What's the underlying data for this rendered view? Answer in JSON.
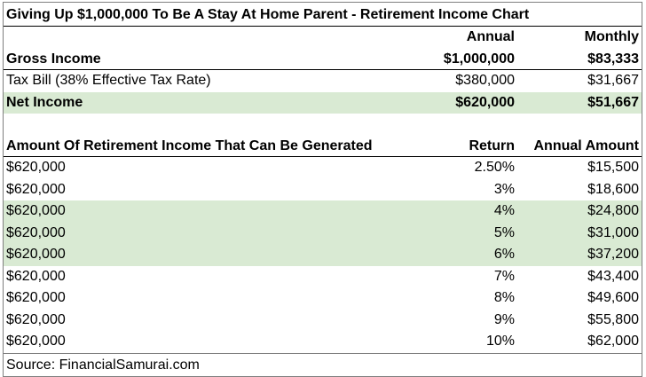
{
  "title": "Giving Up $1,000,000 To Be A Stay At Home Parent - Retirement Income Chart",
  "income_header": {
    "label": "",
    "annual": "Annual",
    "monthly": "Monthly"
  },
  "gross": {
    "label": "Gross Income",
    "annual": "$1,000,000",
    "monthly": "$83,333"
  },
  "tax": {
    "label": "Tax Bill (38% Effective Tax Rate)",
    "annual": "$380,000",
    "monthly": "$31,667"
  },
  "net": {
    "label": "Net Income",
    "annual": "$620,000",
    "monthly": "$51,667"
  },
  "retirement_header": {
    "label": "Amount Of Retirement Income That Can Be Generated",
    "return": "Return",
    "amount": "Annual Amount"
  },
  "retirement_rows": [
    {
      "principal": "$620,000",
      "return": "2.50%",
      "amount": "$15,500",
      "highlight": false
    },
    {
      "principal": "$620,000",
      "return": "3%",
      "amount": "$18,600",
      "highlight": false
    },
    {
      "principal": "$620,000",
      "return": "4%",
      "amount": "$24,800",
      "highlight": true
    },
    {
      "principal": "$620,000",
      "return": "5%",
      "amount": "$31,000",
      "highlight": true
    },
    {
      "principal": "$620,000",
      "return": "6%",
      "amount": "$37,200",
      "highlight": true
    },
    {
      "principal": "$620,000",
      "return": "7%",
      "amount": "$43,400",
      "highlight": false
    },
    {
      "principal": "$620,000",
      "return": "8%",
      "amount": "$49,600",
      "highlight": false
    },
    {
      "principal": "$620,000",
      "return": "9%",
      "amount": "$55,800",
      "highlight": false
    },
    {
      "principal": "$620,000",
      "return": "10%",
      "amount": "$62,000",
      "highlight": false
    }
  ],
  "source": "Source: FinancialSamurai.com",
  "colors": {
    "highlight": "#d9ead3",
    "border": "#7f7f7f",
    "text": "#000000"
  }
}
